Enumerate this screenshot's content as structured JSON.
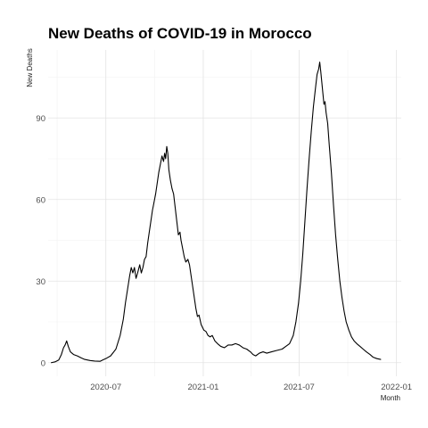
{
  "chart_data": {
    "type": "line",
    "title": "New Deaths of COVID-19 in Morocco",
    "xlabel": "Month",
    "ylabel": "New Deaths",
    "x_type": "date",
    "xlim": [
      "2020-03-14",
      "2022-01-10"
    ],
    "ylim": [
      -5,
      115
    ],
    "y_ticks": [
      0,
      30,
      60,
      90
    ],
    "y_tick_labels": [
      "0",
      "30",
      "60",
      "90"
    ],
    "x_ticks": [
      "2020-07-01",
      "2021-01-01",
      "2021-07-01",
      "2022-01-01"
    ],
    "x_tick_labels": [
      "2020-07",
      "2021-01",
      "2021-07",
      "2022-01"
    ],
    "grid": true,
    "legend": "none",
    "line_color": "#000000",
    "series": [
      {
        "points": [
          [
            "2020-03-20",
            0
          ],
          [
            "2020-03-27",
            0.3
          ],
          [
            "2020-04-03",
            1
          ],
          [
            "2020-04-08",
            3
          ],
          [
            "2020-04-12",
            5.5
          ],
          [
            "2020-04-15",
            6.5
          ],
          [
            "2020-04-18",
            8
          ],
          [
            "2020-04-21",
            6
          ],
          [
            "2020-04-25",
            4
          ],
          [
            "2020-05-01",
            3
          ],
          [
            "2020-05-08",
            2.5
          ],
          [
            "2020-05-15",
            1.8
          ],
          [
            "2020-05-22",
            1.2
          ],
          [
            "2020-06-01",
            0.8
          ],
          [
            "2020-06-10",
            0.6
          ],
          [
            "2020-06-20",
            0.5
          ],
          [
            "2020-06-25",
            1
          ],
          [
            "2020-07-01",
            1.5
          ],
          [
            "2020-07-10",
            2.5
          ],
          [
            "2020-07-20",
            5
          ],
          [
            "2020-07-28",
            10
          ],
          [
            "2020-08-03",
            16
          ],
          [
            "2020-08-07",
            22
          ],
          [
            "2020-08-11",
            27
          ],
          [
            "2020-08-15",
            32
          ],
          [
            "2020-08-18",
            35
          ],
          [
            "2020-08-21",
            33
          ],
          [
            "2020-08-24",
            35
          ],
          [
            "2020-08-27",
            31
          ],
          [
            "2020-08-30",
            33
          ],
          [
            "2020-09-03",
            36
          ],
          [
            "2020-09-06",
            33
          ],
          [
            "2020-09-09",
            35
          ],
          [
            "2020-09-12",
            38
          ],
          [
            "2020-09-15",
            39
          ],
          [
            "2020-09-18",
            44
          ],
          [
            "2020-09-21",
            48
          ],
          [
            "2020-09-24",
            52
          ],
          [
            "2020-09-27",
            56
          ],
          [
            "2020-09-30",
            59
          ],
          [
            "2020-10-03",
            62
          ],
          [
            "2020-10-06",
            66
          ],
          [
            "2020-10-09",
            70
          ],
          [
            "2020-10-12",
            73
          ],
          [
            "2020-10-15",
            76
          ],
          [
            "2020-10-18",
            74
          ],
          [
            "2020-10-20",
            77
          ],
          [
            "2020-10-22",
            75
          ],
          [
            "2020-10-24",
            79.5
          ],
          [
            "2020-10-26",
            77
          ],
          [
            "2020-10-28",
            71
          ],
          [
            "2020-10-31",
            67
          ],
          [
            "2020-11-03",
            64
          ],
          [
            "2020-11-06",
            62
          ],
          [
            "2020-11-09",
            57
          ],
          [
            "2020-11-12",
            52
          ],
          [
            "2020-11-15",
            47
          ],
          [
            "2020-11-18",
            48
          ],
          [
            "2020-11-20",
            45
          ],
          [
            "2020-11-23",
            42
          ],
          [
            "2020-11-26",
            39
          ],
          [
            "2020-11-29",
            37
          ],
          [
            "2020-12-03",
            38
          ],
          [
            "2020-12-06",
            36
          ],
          [
            "2020-12-09",
            32
          ],
          [
            "2020-12-12",
            28
          ],
          [
            "2020-12-15",
            24
          ],
          [
            "2020-12-18",
            20
          ],
          [
            "2020-12-21",
            17
          ],
          [
            "2020-12-24",
            17.5
          ],
          [
            "2020-12-28",
            14
          ],
          [
            "2021-01-02",
            12
          ],
          [
            "2021-01-06",
            11.5
          ],
          [
            "2021-01-10",
            10
          ],
          [
            "2021-01-14",
            9.5
          ],
          [
            "2021-01-18",
            10
          ],
          [
            "2021-01-23",
            8
          ],
          [
            "2021-01-28",
            7
          ],
          [
            "2021-02-03",
            6
          ],
          [
            "2021-02-10",
            5.5
          ],
          [
            "2021-02-17",
            6.5
          ],
          [
            "2021-02-24",
            6.5
          ],
          [
            "2021-03-03",
            7
          ],
          [
            "2021-03-10",
            6.5
          ],
          [
            "2021-03-17",
            5.5
          ],
          [
            "2021-03-24",
            5
          ],
          [
            "2021-03-31",
            4
          ],
          [
            "2021-04-05",
            3
          ],
          [
            "2021-04-10",
            2.5
          ],
          [
            "2021-04-17",
            3.5
          ],
          [
            "2021-04-24",
            4
          ],
          [
            "2021-05-01",
            3.5
          ],
          [
            "2021-05-10",
            4
          ],
          [
            "2021-05-20",
            4.5
          ],
          [
            "2021-05-30",
            5
          ],
          [
            "2021-06-06",
            6
          ],
          [
            "2021-06-13",
            7
          ],
          [
            "2021-06-20",
            10
          ],
          [
            "2021-06-25",
            15
          ],
          [
            "2021-06-30",
            22
          ],
          [
            "2021-07-04",
            30
          ],
          [
            "2021-07-08",
            40
          ],
          [
            "2021-07-12",
            52
          ],
          [
            "2021-07-16",
            64
          ],
          [
            "2021-07-20",
            75
          ],
          [
            "2021-07-24",
            85
          ],
          [
            "2021-07-28",
            94
          ],
          [
            "2021-08-01",
            101
          ],
          [
            "2021-08-04",
            106
          ],
          [
            "2021-08-07",
            108
          ],
          [
            "2021-08-09",
            110.5
          ],
          [
            "2021-08-11",
            107
          ],
          [
            "2021-08-13",
            103
          ],
          [
            "2021-08-15",
            99
          ],
          [
            "2021-08-17",
            95
          ],
          [
            "2021-08-19",
            96
          ],
          [
            "2021-08-21",
            92
          ],
          [
            "2021-08-24",
            88
          ],
          [
            "2021-08-27",
            80
          ],
          [
            "2021-08-31",
            70
          ],
          [
            "2021-09-04",
            58
          ],
          [
            "2021-09-08",
            47
          ],
          [
            "2021-09-12",
            38
          ],
          [
            "2021-09-16",
            30
          ],
          [
            "2021-09-20",
            24
          ],
          [
            "2021-09-24",
            19
          ],
          [
            "2021-09-28",
            15
          ],
          [
            "2021-10-03",
            12
          ],
          [
            "2021-10-08",
            9.5
          ],
          [
            "2021-10-13",
            8
          ],
          [
            "2021-10-18",
            7
          ],
          [
            "2021-10-24",
            6
          ],
          [
            "2021-10-30",
            5
          ],
          [
            "2021-11-05",
            4
          ],
          [
            "2021-11-12",
            3
          ],
          [
            "2021-11-18",
            2
          ],
          [
            "2021-11-25",
            1.5
          ],
          [
            "2021-12-02",
            1.2
          ]
        ]
      }
    ]
  }
}
